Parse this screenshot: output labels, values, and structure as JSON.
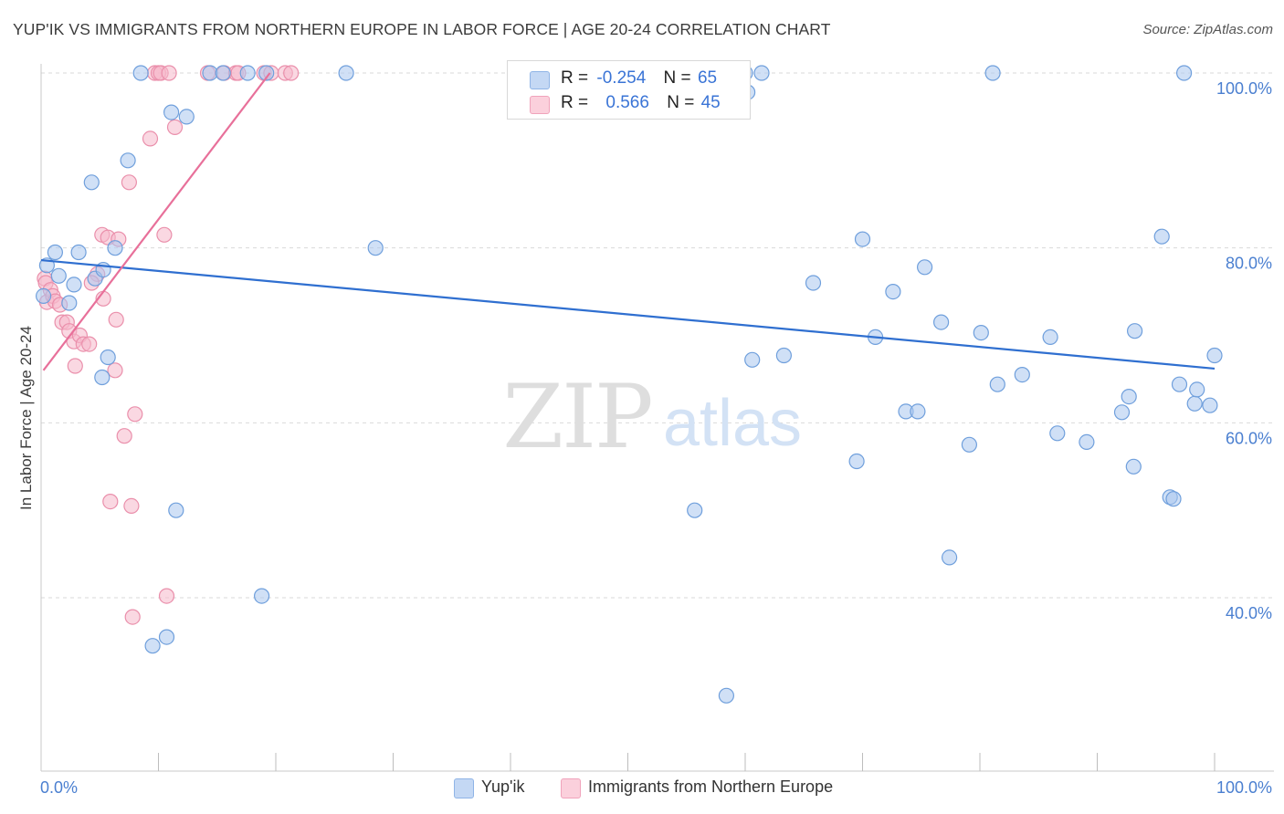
{
  "title": "YUP'IK VS IMMIGRANTS FROM NORTHERN EUROPE IN LABOR FORCE | AGE 20-24 CORRELATION CHART",
  "source": "Source: ZipAtlas.com",
  "watermark": {
    "zip": "ZIP",
    "atlas": "atlas"
  },
  "legend_top": {
    "rows": [
      {
        "r_label": "R =",
        "r_value": "-0.254",
        "n_label": "N =",
        "n_value": "65",
        "color": "#a9c6ef"
      },
      {
        "r_label": "R =",
        "r_value": "0.566",
        "n_label": "N =",
        "n_value": "45",
        "color": "#f6b8cb"
      }
    ]
  },
  "legend_bottom": {
    "series1": "Yup'ik",
    "series2": "Immigrants from Northern Europe"
  },
  "colors": {
    "blue_fill": "#a9c6ef",
    "blue_stroke": "#6f9fdc",
    "blue_line": "#2f6fd0",
    "pink_fill": "#f6b8cb",
    "pink_stroke": "#ea8fab",
    "pink_line": "#e8709a",
    "tick_text": "#4a7fd0",
    "grid": "#d9d9d9"
  },
  "chart_data": {
    "type": "scatter",
    "title": "YUP'IK VS IMMIGRANTS FROM NORTHERN EUROPE IN LABOR FORCE | AGE 20-24 CORRELATION CHART",
    "xlabel": "",
    "ylabel": "In Labor Force | Age 20-24",
    "xlim": [
      0,
      100
    ],
    "ylim": [
      20,
      104
    ],
    "x_tick_labels": [
      "0.0%",
      "100.0%"
    ],
    "y_ticks": [
      {
        "value": 40,
        "label": "40.0%"
      },
      {
        "value": 60,
        "label": "60.0%"
      },
      {
        "value": 80,
        "label": "80.0%"
      },
      {
        "value": 100,
        "label": "100.0%"
      }
    ],
    "series": [
      {
        "name": "Yup'ik",
        "r": -0.254,
        "n": 65,
        "trend": {
          "x": [
            0,
            100
          ],
          "y": [
            78.6,
            66.2
          ]
        },
        "points": [
          [
            0.2,
            74.5
          ],
          [
            0.5,
            78.0
          ],
          [
            1.2,
            79.5
          ],
          [
            1.5,
            76.8
          ],
          [
            2.4,
            73.7
          ],
          [
            2.8,
            75.8
          ],
          [
            3.2,
            79.5
          ],
          [
            4.3,
            87.5
          ],
          [
            4.6,
            76.5
          ],
          [
            5.2,
            65.2
          ],
          [
            5.3,
            77.5
          ],
          [
            5.7,
            67.5
          ],
          [
            6.3,
            80.0
          ],
          [
            7.4,
            90.0
          ],
          [
            8.5,
            100
          ],
          [
            9.5,
            34.5
          ],
          [
            10.7,
            35.5
          ],
          [
            11.1,
            95.5
          ],
          [
            11.5,
            50.0
          ],
          [
            12.4,
            95.0
          ],
          [
            14.4,
            100
          ],
          [
            15.5,
            100
          ],
          [
            17.6,
            100
          ],
          [
            18.8,
            40.2
          ],
          [
            19.2,
            100
          ],
          [
            26.0,
            100
          ],
          [
            28.5,
            80.0
          ],
          [
            55.7,
            50.0
          ],
          [
            58.4,
            28.8
          ],
          [
            60.0,
            100
          ],
          [
            60.2,
            97.8
          ],
          [
            60.6,
            67.2
          ],
          [
            61.4,
            100
          ],
          [
            63.3,
            67.7
          ],
          [
            65.8,
            76.0
          ],
          [
            69.5,
            55.6
          ],
          [
            70.0,
            81.0
          ],
          [
            71.1,
            69.8
          ],
          [
            72.6,
            75.0
          ],
          [
            73.7,
            61.3
          ],
          [
            74.7,
            61.3
          ],
          [
            75.3,
            77.8
          ],
          [
            76.7,
            71.5
          ],
          [
            77.4,
            44.6
          ],
          [
            79.1,
            57.5
          ],
          [
            80.1,
            70.3
          ],
          [
            81.1,
            100
          ],
          [
            81.5,
            64.4
          ],
          [
            83.6,
            65.5
          ],
          [
            86.0,
            69.8
          ],
          [
            86.6,
            58.8
          ],
          [
            89.1,
            57.8
          ],
          [
            92.1,
            61.2
          ],
          [
            92.7,
            63.0
          ],
          [
            93.1,
            55.0
          ],
          [
            93.2,
            70.5
          ],
          [
            95.5,
            81.3
          ],
          [
            96.2,
            51.5
          ],
          [
            96.5,
            51.3
          ],
          [
            97.0,
            64.4
          ],
          [
            97.4,
            100
          ],
          [
            98.3,
            62.2
          ],
          [
            98.5,
            63.8
          ],
          [
            99.6,
            62.0
          ],
          [
            100.0,
            67.7
          ]
        ]
      },
      {
        "name": "Immigrants from Northern Europe",
        "r": 0.566,
        "n": 45,
        "trend": {
          "x": [
            0.2,
            19.5
          ],
          "y": [
            66.0,
            100.0
          ]
        },
        "points": [
          [
            0.3,
            76.5
          ],
          [
            0.4,
            76.0
          ],
          [
            0.5,
            73.8
          ],
          [
            0.8,
            75.2
          ],
          [
            1.0,
            74.5
          ],
          [
            1.2,
            73.9
          ],
          [
            1.6,
            73.5
          ],
          [
            1.8,
            71.5
          ],
          [
            2.2,
            71.5
          ],
          [
            2.4,
            70.5
          ],
          [
            2.8,
            69.3
          ],
          [
            2.9,
            66.5
          ],
          [
            3.3,
            70.0
          ],
          [
            3.6,
            69.0
          ],
          [
            4.1,
            69.0
          ],
          [
            4.8,
            77.0
          ],
          [
            4.3,
            76.0
          ],
          [
            5.2,
            81.5
          ],
          [
            5.3,
            74.2
          ],
          [
            5.7,
            81.2
          ],
          [
            5.9,
            51.0
          ],
          [
            6.3,
            66.0
          ],
          [
            6.4,
            71.8
          ],
          [
            6.6,
            81.0
          ],
          [
            7.1,
            58.5
          ],
          [
            7.5,
            87.5
          ],
          [
            7.7,
            50.5
          ],
          [
            7.8,
            37.8
          ],
          [
            8.0,
            61.0
          ],
          [
            9.3,
            92.5
          ],
          [
            9.7,
            100
          ],
          [
            10.0,
            100
          ],
          [
            10.2,
            100
          ],
          [
            10.5,
            81.5
          ],
          [
            10.7,
            40.2
          ],
          [
            10.9,
            100
          ],
          [
            11.4,
            93.8
          ],
          [
            14.2,
            100
          ],
          [
            15.6,
            100
          ],
          [
            16.6,
            100
          ],
          [
            16.8,
            100
          ],
          [
            19.0,
            100
          ],
          [
            19.6,
            100
          ],
          [
            20.8,
            100
          ],
          [
            21.3,
            100
          ]
        ]
      }
    ]
  }
}
